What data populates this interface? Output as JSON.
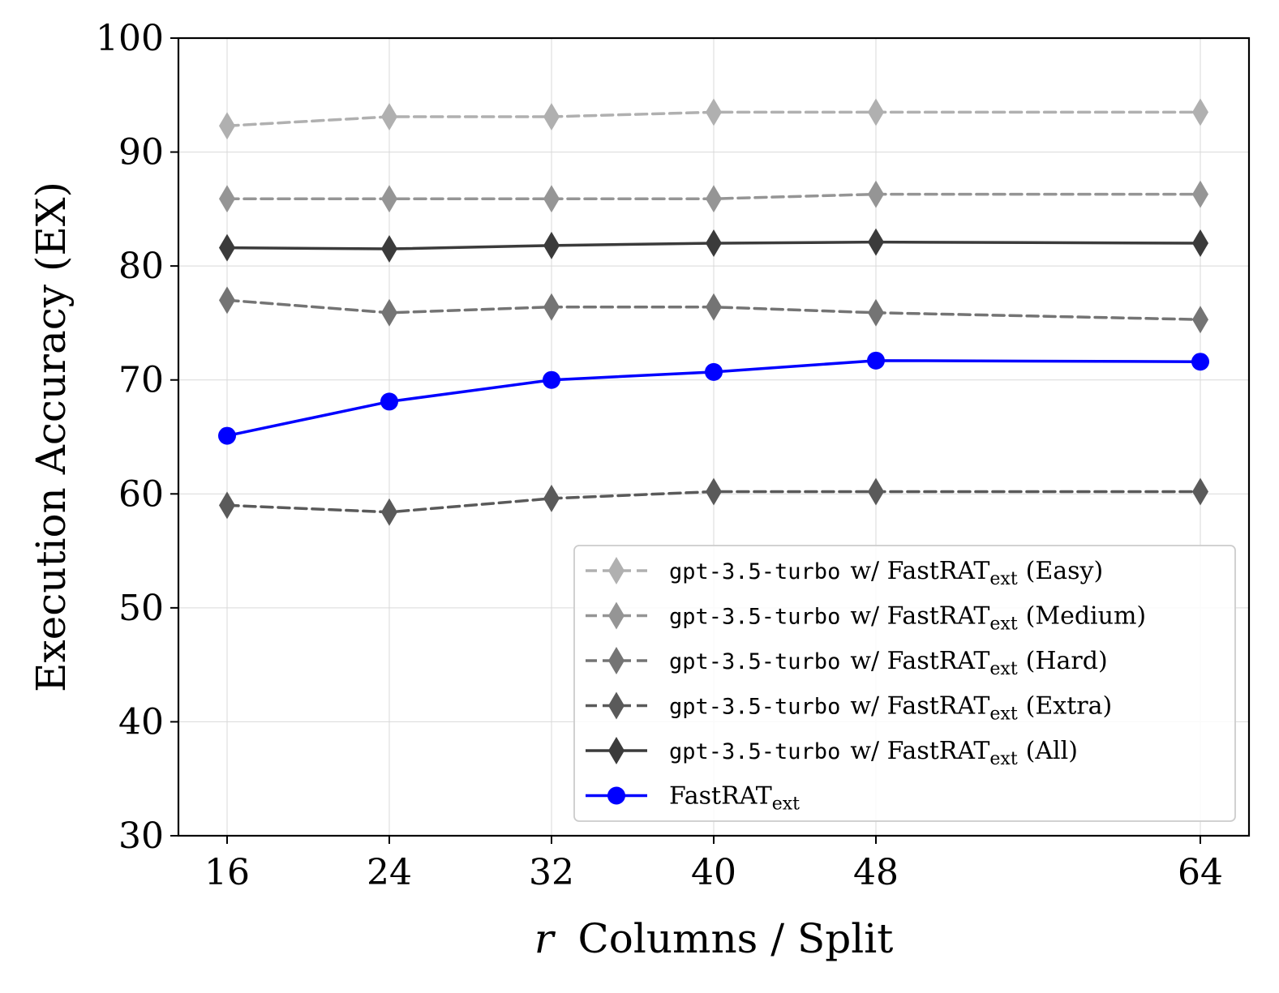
{
  "chart_data": {
    "type": "line",
    "title": "",
    "xlabel_var": "r",
    "xlabel": "Columns / Split",
    "ylabel": "Execution Accuracy (EX)",
    "x": [
      16,
      24,
      32,
      40,
      48,
      64
    ],
    "xticks": [
      "16",
      "24",
      "32",
      "40",
      "48",
      "64"
    ],
    "xlim": [
      13.6,
      66.4
    ],
    "ylim": [
      30,
      100
    ],
    "yticks": [
      "30",
      "40",
      "50",
      "60",
      "70",
      "80",
      "90",
      "100"
    ],
    "grid": true,
    "legend_position": "lower-right",
    "series": [
      {
        "name": "gpt-3.5-turbo w/ FastRAText (Easy)",
        "legend_code": "gpt-3.5-turbo",
        "legend_text": "w/ FastRAT",
        "legend_sub": "ext",
        "legend_suffix": "(Easy)",
        "color": "#b0b0b0",
        "line": "dashed",
        "marker": "diamond",
        "values": [
          92.3,
          93.1,
          93.1,
          93.5,
          93.5,
          93.5
        ]
      },
      {
        "name": "gpt-3.5-turbo w/ FastRAText (Medium)",
        "legend_code": "gpt-3.5-turbo",
        "legend_text": "w/ FastRAT",
        "legend_sub": "ext",
        "legend_suffix": "(Medium)",
        "color": "#959595",
        "line": "dashed",
        "marker": "diamond",
        "values": [
          85.9,
          85.9,
          85.9,
          85.9,
          86.3,
          86.3
        ]
      },
      {
        "name": "gpt-3.5-turbo w/ FastRAText (Hard)",
        "legend_code": "gpt-3.5-turbo",
        "legend_text": "w/ FastRAT",
        "legend_sub": "ext",
        "legend_suffix": "(Hard)",
        "color": "#747474",
        "line": "dashed",
        "marker": "diamond",
        "values": [
          77.0,
          75.9,
          76.4,
          76.4,
          75.9,
          75.3
        ]
      },
      {
        "name": "gpt-3.5-turbo w/ FastRAText (Extra)",
        "legend_code": "gpt-3.5-turbo",
        "legend_text": "w/ FastRAT",
        "legend_sub": "ext",
        "legend_suffix": "(Extra)",
        "color": "#5a5a5a",
        "line": "dashed",
        "marker": "diamond",
        "values": [
          59.0,
          58.4,
          59.6,
          60.2,
          60.2,
          60.2
        ]
      },
      {
        "name": "gpt-3.5-turbo w/ FastRAText (All)",
        "legend_code": "gpt-3.5-turbo",
        "legend_text": "w/ FastRAT",
        "legend_sub": "ext",
        "legend_suffix": "(All)",
        "color": "#3b3b3b",
        "line": "solid",
        "marker": "diamond",
        "values": [
          81.6,
          81.5,
          81.8,
          82.0,
          82.1,
          82.0
        ]
      },
      {
        "name": "FastRAText",
        "legend_code": "",
        "legend_text": "FastRAT",
        "legend_sub": "ext",
        "legend_suffix": "",
        "color": "#0000ff",
        "line": "solid",
        "marker": "circle",
        "values": [
          65.1,
          68.1,
          70.0,
          70.7,
          71.7,
          71.6
        ]
      }
    ]
  }
}
